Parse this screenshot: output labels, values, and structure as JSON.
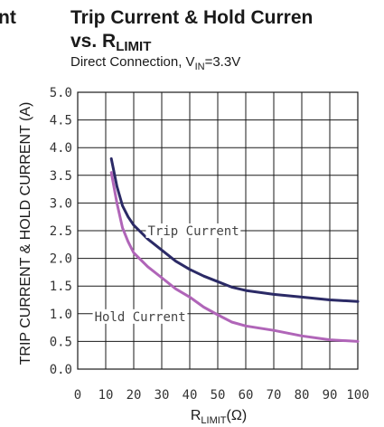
{
  "left_fragment": "nt",
  "title_line1": "Trip Current & Hold Curren",
  "title_line2_prefix": "vs. R",
  "title_line2_sub": "LIMIT",
  "subtitle_prefix": "Direct Connection, V",
  "subtitle_sub": "IN",
  "subtitle_suffix": "=3.3V",
  "chart_data": {
    "type": "line",
    "ylabel": "TRIP CURRENT & HOLD CURRENT (A)",
    "xlabel_prefix": "R",
    "xlabel_sub": "LIMIT",
    "xlabel_suffix": "(Ω)",
    "xlim": [
      0,
      100
    ],
    "ylim": [
      0,
      5
    ],
    "grid": true,
    "x_ticks": [
      0,
      10,
      20,
      30,
      40,
      50,
      60,
      70,
      80,
      90,
      100
    ],
    "x_tick_labels": [
      "0",
      "10",
      "20",
      "30",
      "40",
      "50",
      "60",
      "70",
      "80",
      "90",
      "100"
    ],
    "y_ticks": [
      0,
      0.5,
      1,
      1.5,
      2,
      2.5,
      3,
      3.5,
      4,
      4.5,
      5
    ],
    "y_tick_labels": [
      "0.0",
      "0.5",
      "1.0",
      "1.5",
      "2.0",
      "2.5",
      "3.0",
      "3.5",
      "4.0",
      "4.5",
      "5.0"
    ],
    "series": [
      {
        "name": "Trip Current",
        "color": "#2b2a66",
        "x": [
          12,
          14,
          16,
          18,
          20,
          25,
          30,
          35,
          40,
          45,
          50,
          55,
          60,
          70,
          80,
          90,
          100
        ],
        "y": [
          3.8,
          3.3,
          2.95,
          2.75,
          2.6,
          2.35,
          2.15,
          1.95,
          1.8,
          1.68,
          1.58,
          1.48,
          1.42,
          1.35,
          1.3,
          1.25,
          1.22
        ]
      },
      {
        "name": "Hold Current",
        "color": "#b065b8",
        "x": [
          12,
          14,
          16,
          18,
          20,
          25,
          30,
          35,
          40,
          45,
          50,
          55,
          60,
          70,
          80,
          90,
          100
        ],
        "y": [
          3.55,
          3.0,
          2.55,
          2.3,
          2.1,
          1.85,
          1.65,
          1.45,
          1.3,
          1.12,
          0.98,
          0.85,
          0.78,
          0.7,
          0.6,
          0.53,
          0.5
        ]
      }
    ],
    "annotations": [
      {
        "text": "Trip Current",
        "x": 25,
        "y": 2.5
      },
      {
        "text": "Hold Current",
        "x": 6,
        "y": 0.95
      }
    ]
  }
}
